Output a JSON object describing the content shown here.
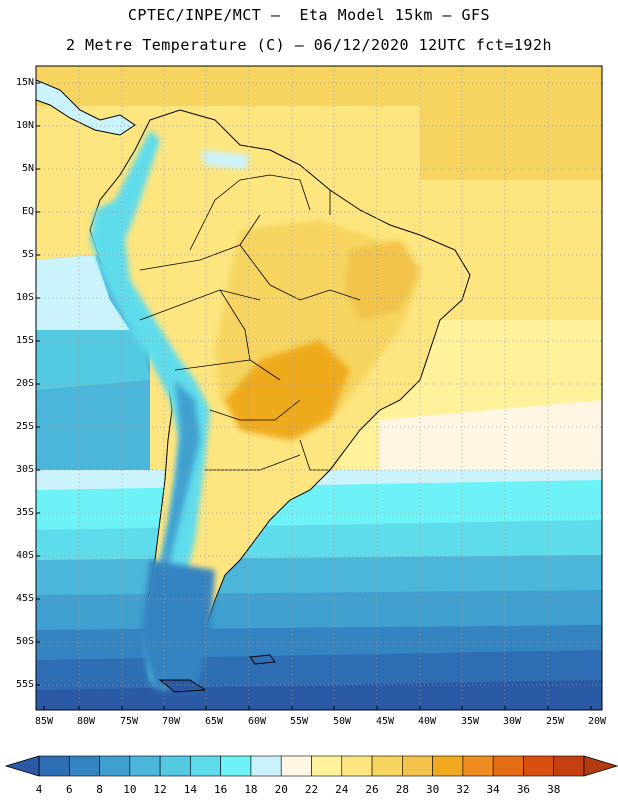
{
  "header": {
    "line1": "CPTEC/INPE/MCT –  Eta Model 15km – GFS",
    "line2": "2 Metre Temperature (C) – 06/12/2020 12UTC fct=192h"
  },
  "axes": {
    "lat_labels": [
      "15N",
      "10N",
      "5N",
      "EQ",
      "5S",
      "10S",
      "15S",
      "20S",
      "25S",
      "30S",
      "35S",
      "40S",
      "45S",
      "50S",
      "55S"
    ],
    "lon_labels": [
      "85W",
      "80W",
      "75W",
      "70W",
      "65W",
      "60W",
      "55W",
      "50W",
      "45W",
      "40W",
      "35W",
      "30W",
      "25W",
      "20W"
    ]
  },
  "colorbar": {
    "labels": [
      "4",
      "6",
      "8",
      "10",
      "12",
      "14",
      "16",
      "18",
      "20",
      "22",
      "24",
      "26",
      "28",
      "30",
      "32",
      "34",
      "36",
      "38"
    ],
    "colors": [
      "#2a5aa6",
      "#2f6eb4",
      "#3584c2",
      "#3fa0cf",
      "#4bb6da",
      "#54c9e2",
      "#5fdcec",
      "#6cf2f7",
      "#cbf3fb",
      "#fff7e4",
      "#fff29a",
      "#fde57f",
      "#f6d45f",
      "#f2c24a",
      "#efaa1f",
      "#ee8c20",
      "#e56b14",
      "#d94f10",
      "#c44010",
      "#b53c12"
    ]
  },
  "icons": {
    "left_arrow": "colorbar-left-arrow",
    "right_arrow": "colorbar-right-arrow"
  }
}
